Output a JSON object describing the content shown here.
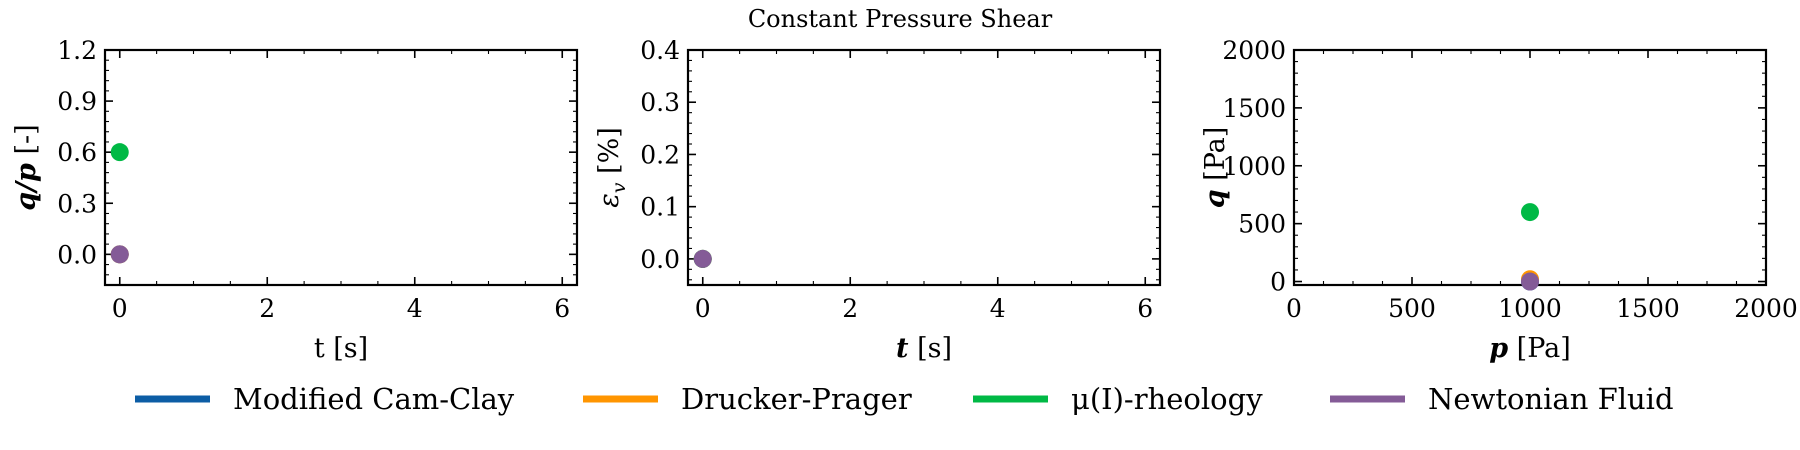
{
  "figure": {
    "title": "Constant Pressure Shear"
  },
  "chart_data": [
    {
      "type": "scatter",
      "xlabel": "t [s]",
      "ylabel": "q/p [-]",
      "xlim": [
        -0.2,
        6.2
      ],
      "ylim": [
        -0.18,
        1.2
      ],
      "xticks": [
        0,
        2,
        4,
        6
      ],
      "yticks": [
        0.0,
        0.3,
        0.6,
        0.9,
        1.2
      ],
      "xtick_labels": [
        "0",
        "2",
        "4",
        "6"
      ],
      "ytick_labels": [
        "0.0",
        "0.3",
        "0.6",
        "0.9",
        "1.2"
      ],
      "series": [
        {
          "name": "Modified Cam-Clay",
          "x": [
            0
          ],
          "y": [
            0.0
          ]
        },
        {
          "name": "Drucker-Prager",
          "x": [
            0
          ],
          "y": [
            0.0
          ]
        },
        {
          "name": "μ(I)-rheology",
          "x": [
            0
          ],
          "y": [
            0.6
          ]
        },
        {
          "name": "Newtonian Fluid",
          "x": [
            0
          ],
          "y": [
            0.0
          ]
        }
      ]
    },
    {
      "type": "scatter",
      "xlabel": "t [s]",
      "ylabel": "εv [%]",
      "xlim": [
        -0.2,
        6.2
      ],
      "ylim": [
        -0.05,
        0.4
      ],
      "xticks": [
        0,
        2,
        4,
        6
      ],
      "yticks": [
        0.0,
        0.1,
        0.2,
        0.3,
        0.4
      ],
      "xtick_labels": [
        "0",
        "2",
        "4",
        "6"
      ],
      "ytick_labels": [
        "0.0",
        "0.1",
        "0.2",
        "0.3",
        "0.4"
      ],
      "series": [
        {
          "name": "Modified Cam-Clay",
          "x": [
            0
          ],
          "y": [
            0.0
          ]
        },
        {
          "name": "Drucker-Prager",
          "x": [
            0
          ],
          "y": [
            0.0
          ]
        },
        {
          "name": "μ(I)-rheology",
          "x": [
            0
          ],
          "y": [
            0.0
          ]
        },
        {
          "name": "Newtonian Fluid",
          "x": [
            0
          ],
          "y": [
            0.0
          ]
        }
      ]
    },
    {
      "type": "scatter",
      "xlabel": "p [Pa]",
      "ylabel": "q [Pa]",
      "xlim": [
        0,
        2000
      ],
      "ylim": [
        -30,
        2000
      ],
      "xticks": [
        0,
        500,
        1000,
        1500,
        2000
      ],
      "yticks": [
        0,
        500,
        1000,
        1500,
        2000
      ],
      "xtick_labels": [
        "0",
        "500",
        "1000",
        "1500",
        "2000"
      ],
      "ytick_labels": [
        "0",
        "500",
        "1000",
        "1500",
        "2000"
      ],
      "series": [
        {
          "name": "Modified Cam-Clay",
          "x": [
            1000
          ],
          "y": [
            0
          ]
        },
        {
          "name": "Drucker-Prager",
          "x": [
            1000
          ],
          "y": [
            20
          ]
        },
        {
          "name": "μ(I)-rheology",
          "x": [
            1000
          ],
          "y": [
            600
          ]
        },
        {
          "name": "Newtonian Fluid",
          "x": [
            1000
          ],
          "y": [
            0
          ]
        }
      ]
    }
  ],
  "legend": {
    "placement": "bottom",
    "entries": [
      {
        "label": "Modified Cam-Clay",
        "color": "#0C5DA5"
      },
      {
        "label": "Drucker-Prager",
        "color": "#FF9500"
      },
      {
        "label": "μ(I)-rheology",
        "color": "#00B945"
      },
      {
        "label": "Newtonian Fluid",
        "color": "#845B97"
      }
    ]
  }
}
